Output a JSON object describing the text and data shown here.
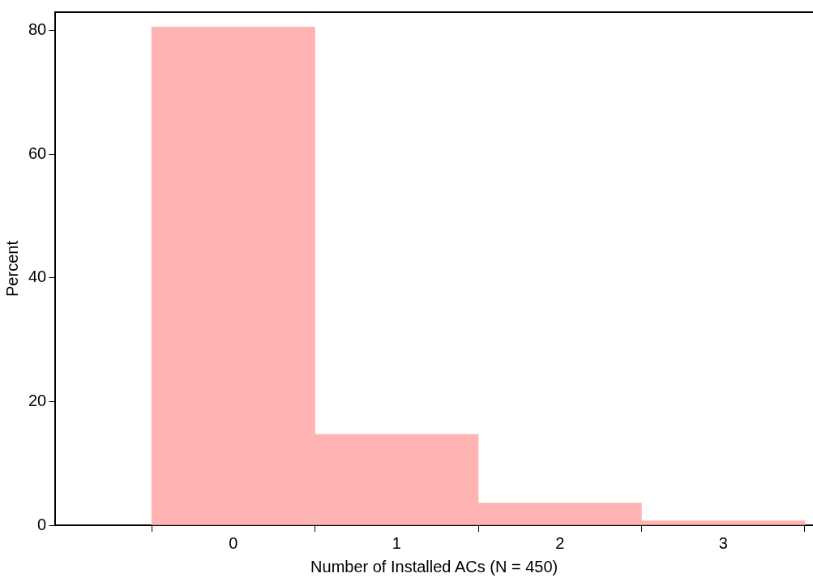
{
  "chart_data": {
    "type": "histogram",
    "xlabel": "Number of Installed ACs (N = 450)",
    "ylabel": "Percent",
    "bins": [
      -0.5,
      0.5,
      1.5,
      2.5,
      3.5
    ],
    "values": [
      80.6,
      14.7,
      3.6,
      0.7
    ],
    "color": "#ffb3b3",
    "xlim": [
      -1.09,
      3.55
    ],
    "xticks": [
      0,
      1,
      2,
      3
    ],
    "ylim": [
      0,
      83
    ],
    "yticks": [
      0,
      20,
      40,
      60,
      80
    ],
    "grid": false,
    "legend": false
  }
}
